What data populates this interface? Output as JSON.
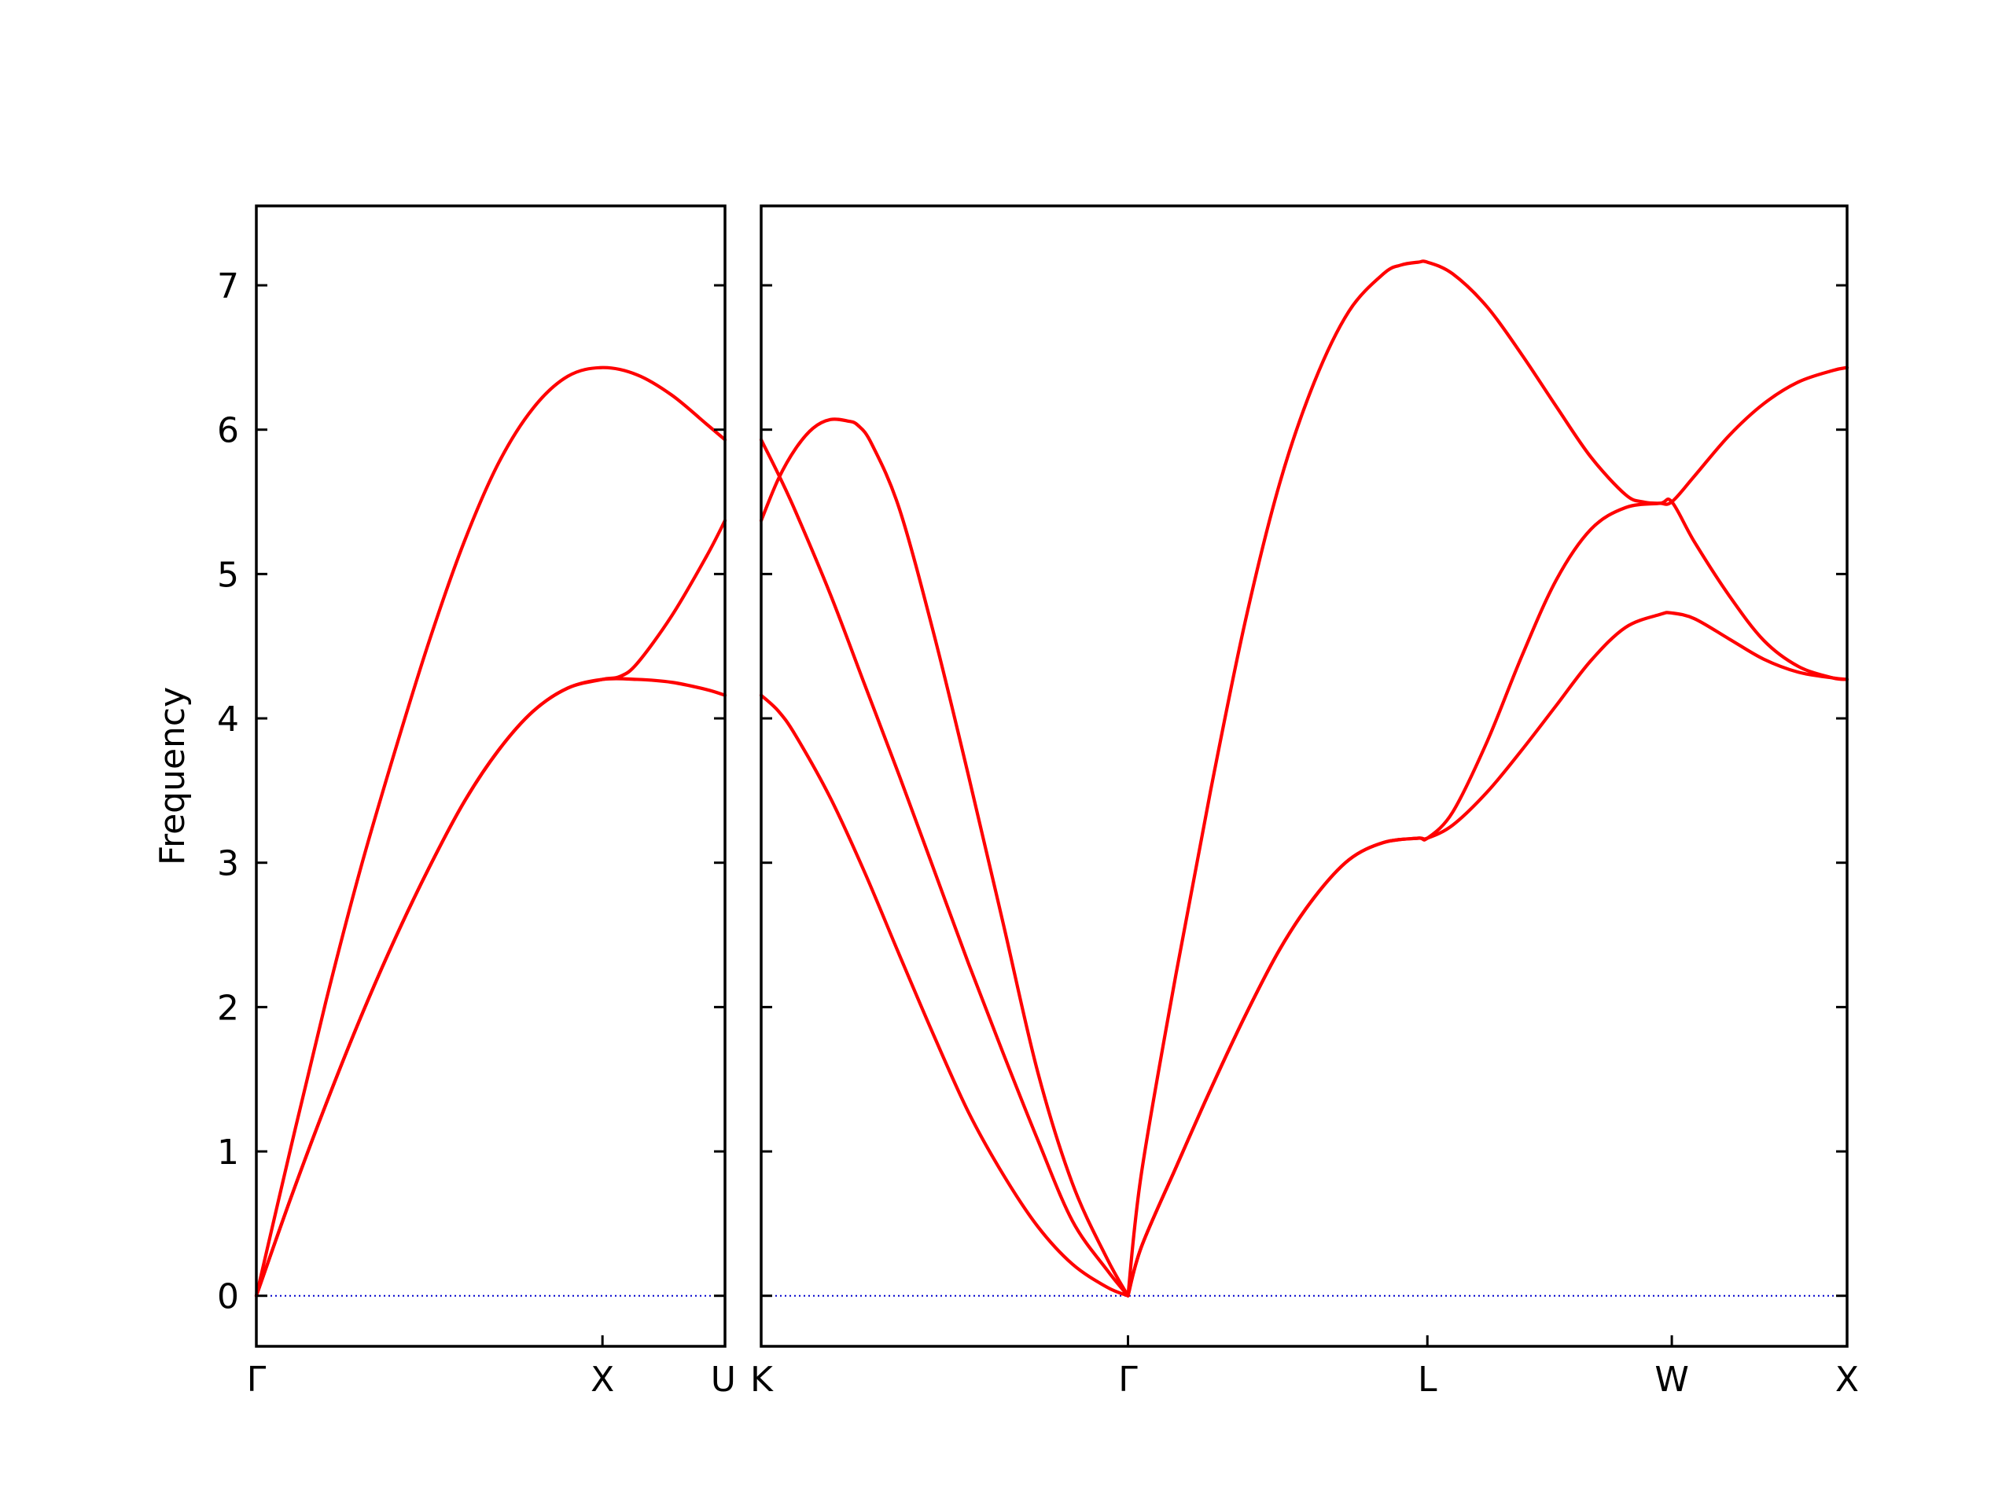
{
  "chart_data": [
    {
      "type": "line",
      "panel": "left",
      "ylabel": "Frequency",
      "ylim": [
        -0.35,
        7.55
      ],
      "y_ticks": [
        "0",
        "1",
        "2",
        "3",
        "4",
        "5",
        "6",
        "7"
      ],
      "y_tick_values": [
        0,
        1,
        2,
        3,
        4,
        5,
        6,
        7
      ],
      "xlim": [
        0,
        1.354
      ],
      "x_ticks": [
        {
          "label": "Γ",
          "value": 0
        },
        {
          "label": "X",
          "value": 1.0
        },
        {
          "label": "U",
          "value": 1.354
        }
      ],
      "grid": false,
      "band_color": "#ff0000",
      "zero_line_color": "#0000cc",
      "series": [
        {
          "x": [
            0,
            0.1,
            0.2,
            0.3,
            0.4,
            0.5,
            0.6,
            0.7,
            0.8,
            0.9,
            1.0,
            1.1,
            1.2,
            1.3,
            1.354
          ],
          "values": [
            0,
            1.03,
            2.03,
            2.95,
            3.77,
            4.54,
            5.22,
            5.77,
            6.15,
            6.37,
            6.43,
            6.38,
            6.24,
            6.04,
            5.93
          ]
        },
        {
          "x": [
            0,
            0.1,
            0.2,
            0.3,
            0.4,
            0.5,
            0.6,
            0.7,
            0.8,
            0.9,
            1.0,
            1.05,
            1.1,
            1.2,
            1.3,
            1.354
          ],
          "values": [
            0,
            0.68,
            1.32,
            1.92,
            2.47,
            2.97,
            3.42,
            3.78,
            4.05,
            4.21,
            4.27,
            4.29,
            4.38,
            4.71,
            5.12,
            5.37
          ]
        },
        {
          "x": [
            0,
            0.1,
            0.2,
            0.3,
            0.4,
            0.5,
            0.6,
            0.7,
            0.8,
            0.9,
            1.0,
            1.1,
            1.2,
            1.3,
            1.354
          ],
          "values": [
            0,
            0.68,
            1.32,
            1.92,
            2.47,
            2.97,
            3.42,
            3.78,
            4.05,
            4.21,
            4.27,
            4.27,
            4.25,
            4.2,
            4.16
          ]
        }
      ]
    },
    {
      "type": "line",
      "panel": "right",
      "ylim": [
        -0.35,
        7.55
      ],
      "xlim": [
        0,
        3.141
      ],
      "x_ticks": [
        {
          "label": "K",
          "value": 0
        },
        {
          "label": "Γ",
          "value": 1.061
        },
        {
          "label": "L",
          "value": 1.927
        },
        {
          "label": "W",
          "value": 2.634
        },
        {
          "label": "X",
          "value": 3.141
        }
      ],
      "grid": false,
      "band_color": "#ff0000",
      "zero_line_color": "#0000cc",
      "series": [
        {
          "x": [
            0,
            0.05,
            0.1,
            0.15,
            0.2,
            0.25,
            0.28,
            0.32,
            0.4,
            0.5,
            0.6,
            0.7,
            0.8,
            0.9,
            1.0,
            1.061
          ],
          "values": [
            5.37,
            5.66,
            5.87,
            6.01,
            6.07,
            6.06,
            6.03,
            5.9,
            5.45,
            4.58,
            3.6,
            2.58,
            1.55,
            0.78,
            0.26,
            0
          ]
        },
        {
          "x": [
            0,
            0.05,
            0.1,
            0.2,
            0.3,
            0.4,
            0.5,
            0.6,
            0.7,
            0.8,
            0.9,
            1.0,
            1.061
          ],
          "values": [
            5.93,
            5.69,
            5.43,
            4.86,
            4.23,
            3.6,
            2.95,
            2.3,
            1.68,
            1.08,
            0.52,
            0.18,
            0
          ]
        },
        {
          "x": [
            0,
            0.05,
            0.1,
            0.2,
            0.3,
            0.4,
            0.5,
            0.6,
            0.7,
            0.8,
            0.9,
            1.0,
            1.061
          ],
          "values": [
            4.16,
            4.05,
            3.88,
            3.45,
            2.93,
            2.36,
            1.8,
            1.27,
            0.84,
            0.48,
            0.22,
            0.06,
            0
          ]
        },
        {
          "x": [
            1.061,
            1.1,
            1.2,
            1.3,
            1.4,
            1.5,
            1.6,
            1.7,
            1.8,
            1.85,
            1.9,
            1.927,
            2.0,
            2.1,
            2.2,
            2.3,
            2.4,
            2.5,
            2.55,
            2.6,
            2.634,
            2.7,
            2.8,
            2.9,
            3.0,
            3.1,
            3.141
          ],
          "values": [
            0,
            0.85,
            2.23,
            3.5,
            4.67,
            5.63,
            6.33,
            6.82,
            7.08,
            7.14,
            7.16,
            7.16,
            7.08,
            6.85,
            6.52,
            6.16,
            5.81,
            5.55,
            5.5,
            5.49,
            5.5,
            5.68,
            5.96,
            6.18,
            6.33,
            6.41,
            6.43
          ]
        },
        {
          "x": [
            1.061,
            1.1,
            1.2,
            1.3,
            1.4,
            1.5,
            1.6,
            1.7,
            1.8,
            1.9,
            1.927,
            2.0,
            2.1,
            2.2,
            2.3,
            2.4,
            2.5,
            2.6,
            2.634,
            2.7,
            2.8,
            2.9,
            3.0,
            3.1,
            3.141
          ],
          "values": [
            0,
            0.34,
            0.89,
            1.43,
            1.94,
            2.4,
            2.76,
            3.02,
            3.14,
            3.17,
            3.17,
            3.35,
            3.84,
            4.43,
            4.96,
            5.31,
            5.46,
            5.49,
            5.5,
            5.22,
            4.85,
            4.54,
            4.36,
            4.28,
            4.27
          ]
        },
        {
          "x": [
            1.061,
            1.1,
            1.2,
            1.3,
            1.4,
            1.5,
            1.6,
            1.7,
            1.8,
            1.9,
            1.927,
            2.0,
            2.1,
            2.2,
            2.3,
            2.4,
            2.5,
            2.6,
            2.634,
            2.7,
            2.8,
            2.9,
            3.0,
            3.1,
            3.141
          ],
          "values": [
            0,
            0.34,
            0.89,
            1.43,
            1.94,
            2.4,
            2.76,
            3.02,
            3.14,
            3.17,
            3.17,
            3.26,
            3.49,
            3.78,
            4.09,
            4.4,
            4.63,
            4.72,
            4.73,
            4.69,
            4.55,
            4.41,
            4.32,
            4.28,
            4.27
          ]
        }
      ]
    }
  ]
}
